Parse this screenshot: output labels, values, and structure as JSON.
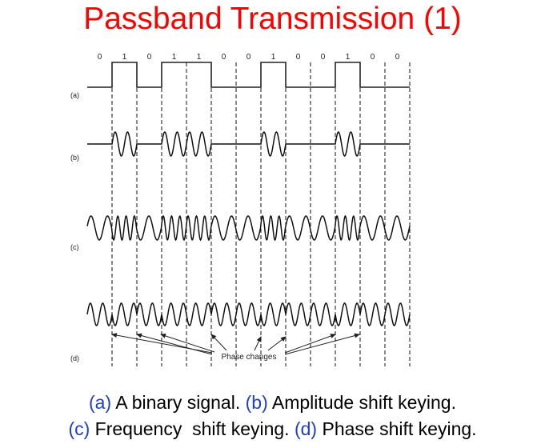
{
  "title": "Passband Transmission (1)",
  "figure": {
    "bits": [
      0,
      1,
      0,
      1,
      1,
      0,
      0,
      1,
      0,
      0,
      1,
      0,
      0
    ],
    "row_labels": [
      "(a)",
      "(b)",
      "(c)",
      "(d)"
    ],
    "annotation": "Phase changes"
  },
  "caption": {
    "line1": [
      {
        "tag": "(a)",
        "text": " A binary signal. "
      },
      {
        "tag": "(b)",
        "text": " Amplitude shift keying."
      }
    ],
    "line2": [
      {
        "tag": "(c)",
        "text": " Frequency  shift keying. "
      },
      {
        "tag": "(d)",
        "text": " Phase shift keying."
      }
    ]
  },
  "colors": {
    "title": "#ff0000",
    "caption_tag": "#1f3fc8"
  }
}
